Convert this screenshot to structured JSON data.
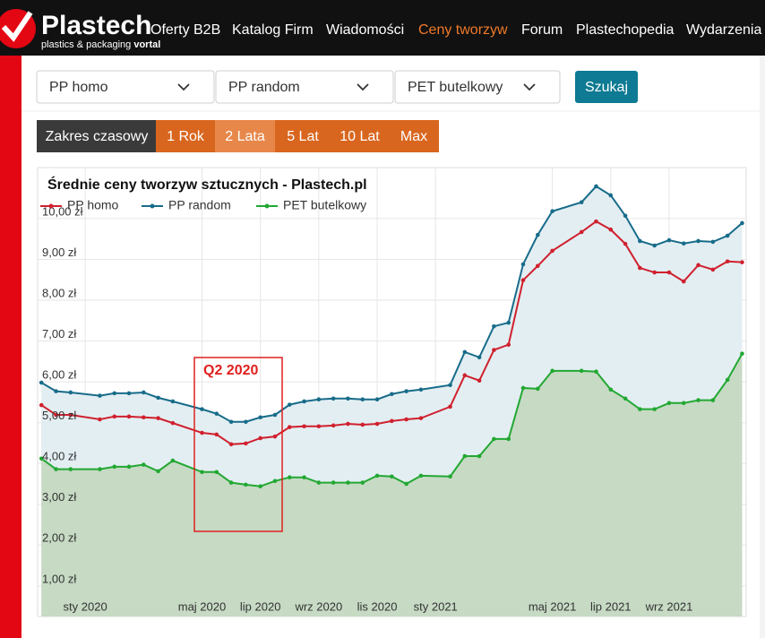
{
  "header": {
    "logo": "Plastech",
    "logo_sub": "plastics & packaging",
    "logo_sub_bold": "vortal",
    "nav": [
      {
        "label": "Oferty B2B"
      },
      {
        "label": "Katalog Firm"
      },
      {
        "label": "Wiadomości"
      },
      {
        "label": "Ceny tworzyw",
        "active": true
      },
      {
        "label": "Forum"
      },
      {
        "label": "Plastechopedia"
      },
      {
        "label": "Wydarzenia"
      }
    ]
  },
  "filters": {
    "selects": [
      "PP homo",
      "PP random",
      "PET butelkowy"
    ],
    "button": "Szukaj"
  },
  "range": {
    "label": "Zakres czasowy",
    "options": [
      {
        "label": "1 Rok"
      },
      {
        "label": "2 Lata",
        "active": true
      },
      {
        "label": "5 Lat"
      },
      {
        "label": "10 Lat"
      },
      {
        "label": "Max"
      }
    ]
  },
  "chart_data": {
    "type": "line",
    "title": "Średnie ceny tworzyw sztucznych - Plastech.pl",
    "x": [
      -1.5,
      -1,
      -0.5,
      0.5,
      1,
      1.5,
      2,
      2.5,
      3,
      4,
      4.5,
      5,
      5.5,
      6,
      6.5,
      7,
      7.5,
      8,
      8.5,
      9,
      9.5,
      10,
      10.5,
      11,
      11.5,
      12.5,
      13,
      13.5,
      14,
      14.5,
      15,
      15.5,
      16,
      17,
      17.5,
      18,
      18.5,
      19,
      19.5,
      20,
      20.5,
      21,
      21.5,
      22,
      22.5
    ],
    "series": [
      {
        "name": "PP homo",
        "color": "#d0202e",
        "fill": "#e6d3d8",
        "values": [
          5.43,
          5.19,
          5.19,
          5.08,
          5.15,
          5.15,
          5.13,
          5.11,
          4.99,
          4.75,
          4.71,
          4.47,
          4.49,
          4.62,
          4.66,
          4.89,
          4.91,
          4.91,
          4.93,
          4.97,
          4.95,
          4.97,
          5.04,
          5.08,
          5.11,
          5.39,
          6.16,
          6.03,
          6.78,
          6.91,
          8.49,
          8.84,
          9.21,
          9.67,
          9.93,
          9.73,
          9.38,
          8.79,
          8.68,
          8.68,
          8.46,
          8.86,
          8.75,
          8.95,
          8.93
        ]
      },
      {
        "name": "PP random",
        "color": "#186c8a",
        "fill": "#e3eef2",
        "values": [
          5.98,
          5.77,
          5.74,
          5.66,
          5.72,
          5.72,
          5.74,
          5.61,
          5.52,
          5.33,
          5.22,
          5.02,
          5.02,
          5.13,
          5.19,
          5.44,
          5.52,
          5.57,
          5.59,
          5.59,
          5.57,
          5.57,
          5.7,
          5.77,
          5.81,
          5.92,
          6.73,
          6.6,
          7.36,
          7.45,
          8.88,
          9.6,
          10.18,
          10.4,
          10.79,
          10.57,
          10.07,
          9.45,
          9.34,
          9.47,
          9.39,
          9.45,
          9.43,
          9.58,
          9.89
        ]
      },
      {
        "name": "PET butelkowy",
        "color": "#22a832",
        "fill": "#c6dac4",
        "values": [
          4.12,
          3.86,
          3.86,
          3.86,
          3.92,
          3.92,
          3.97,
          3.81,
          4.07,
          3.79,
          3.79,
          3.53,
          3.48,
          3.44,
          3.57,
          3.66,
          3.66,
          3.53,
          3.53,
          3.53,
          3.53,
          3.7,
          3.68,
          3.5,
          3.7,
          3.68,
          4.18,
          4.18,
          4.6,
          4.6,
          5.85,
          5.83,
          6.27,
          6.27,
          6.25,
          5.81,
          5.59,
          5.33,
          5.33,
          5.48,
          5.48,
          5.55,
          5.55,
          6.05,
          6.69
        ]
      }
    ],
    "xlim": [
      -1.63,
      22.64
    ],
    "xticks": [
      {
        "value": 0,
        "label": "sty 2020"
      },
      {
        "value": 4,
        "label": "maj 2020"
      },
      {
        "value": 6,
        "label": "lip 2020"
      },
      {
        "value": 8,
        "label": "wrz 2020"
      },
      {
        "value": 10,
        "label": "lis 2020"
      },
      {
        "value": 12,
        "label": "sty 2021"
      },
      {
        "value": 16,
        "label": "maj 2021"
      },
      {
        "value": 18,
        "label": "lip 2021"
      },
      {
        "value": 20,
        "label": "wrz 2021"
      }
    ],
    "ylim": [
      0.25,
      11.25
    ],
    "yticks": [
      {
        "value": 1,
        "label": "1,00 zł"
      },
      {
        "value": 2,
        "label": "2,00 zł"
      },
      {
        "value": 3,
        "label": "3,00 zł"
      },
      {
        "value": 4,
        "label": "4,00 zł"
      },
      {
        "value": 5,
        "label": "5,00 zł"
      },
      {
        "value": 6,
        "label": "6,00 zł"
      },
      {
        "value": 7,
        "label": "7,00 zł"
      },
      {
        "value": 8,
        "label": "8,00 zł"
      },
      {
        "value": 9,
        "label": "9,00 zł"
      },
      {
        "value": 10,
        "label": "10,00 zł"
      }
    ],
    "grid": true,
    "legend": "top-left",
    "area": true,
    "annotation": {
      "text": "Q2 2020"
    }
  }
}
